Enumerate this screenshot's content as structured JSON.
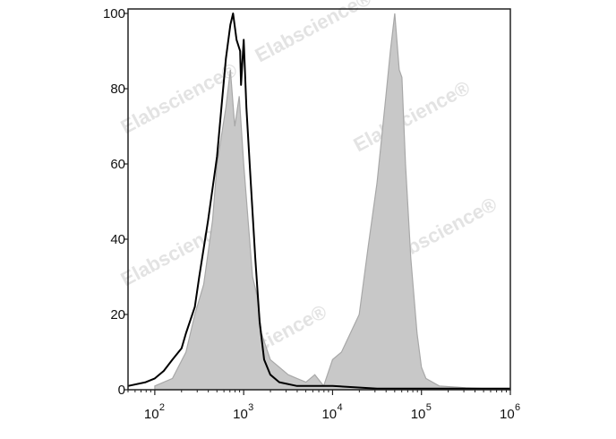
{
  "chart_data": {
    "type": "area",
    "title": "",
    "xlabel": "",
    "ylabel": "",
    "x_scale": "log",
    "xlim": [
      50,
      1000000
    ],
    "ylim": [
      0,
      100
    ],
    "grid": false,
    "x_ticks": [
      {
        "base": "10",
        "exp": "2",
        "value": 100
      },
      {
        "base": "10",
        "exp": "3",
        "value": 1000
      },
      {
        "base": "10",
        "exp": "4",
        "value": 10000
      },
      {
        "base": "10",
        "exp": "5",
        "value": 100000
      },
      {
        "base": "10",
        "exp": "6",
        "value": 1000000
      }
    ],
    "y_ticks": [
      "0",
      "20",
      "40",
      "60",
      "80",
      "100"
    ],
    "series": [
      {
        "style": "filled",
        "color": "#c8c8c8",
        "stroke": "#a8a8a8",
        "x": [
          100,
          158,
          224,
          282,
          355,
          447,
          501,
          631,
          708,
          794,
          891,
          1000,
          1122,
          1259,
          1413,
          1585,
          1995,
          2512,
          3162,
          3981,
          5012,
          6310,
          7943,
          10000,
          12589,
          15849,
          19953,
          25119,
          31623,
          39811,
          44668,
          50119,
          56234,
          60256,
          66069,
          75858,
          89125,
          100000,
          112202,
          158489,
          316228,
          1000000
        ],
        "y": [
          1,
          3,
          10,
          20,
          28,
          45,
          60,
          75,
          85,
          70,
          78,
          60,
          45,
          30,
          25,
          15,
          8,
          6,
          4,
          3,
          2,
          4,
          1,
          8,
          10,
          15,
          20,
          38,
          55,
          78,
          90,
          100,
          85,
          83,
          60,
          35,
          15,
          6,
          3,
          1,
          0.5,
          0
        ]
      },
      {
        "style": "line",
        "color": "#000000",
        "x": [
          50,
          79,
          100,
          126,
          158,
          200,
          224,
          282,
          316,
          398,
          501,
          562,
          631,
          708,
          759,
          832,
          912,
          933,
          1000,
          1072,
          1202,
          1349,
          1514,
          1698,
          1995,
          2512,
          3981,
          10000,
          31623,
          1000000
        ],
        "y": [
          1,
          2,
          3,
          5,
          8,
          11,
          15,
          22,
          30,
          45,
          62,
          75,
          88,
          97,
          100,
          93,
          90,
          81,
          93,
          75,
          55,
          35,
          18,
          8,
          4,
          2,
          1,
          1,
          0.3,
          0.3
        ]
      }
    ]
  },
  "watermark": "Elabscience®"
}
